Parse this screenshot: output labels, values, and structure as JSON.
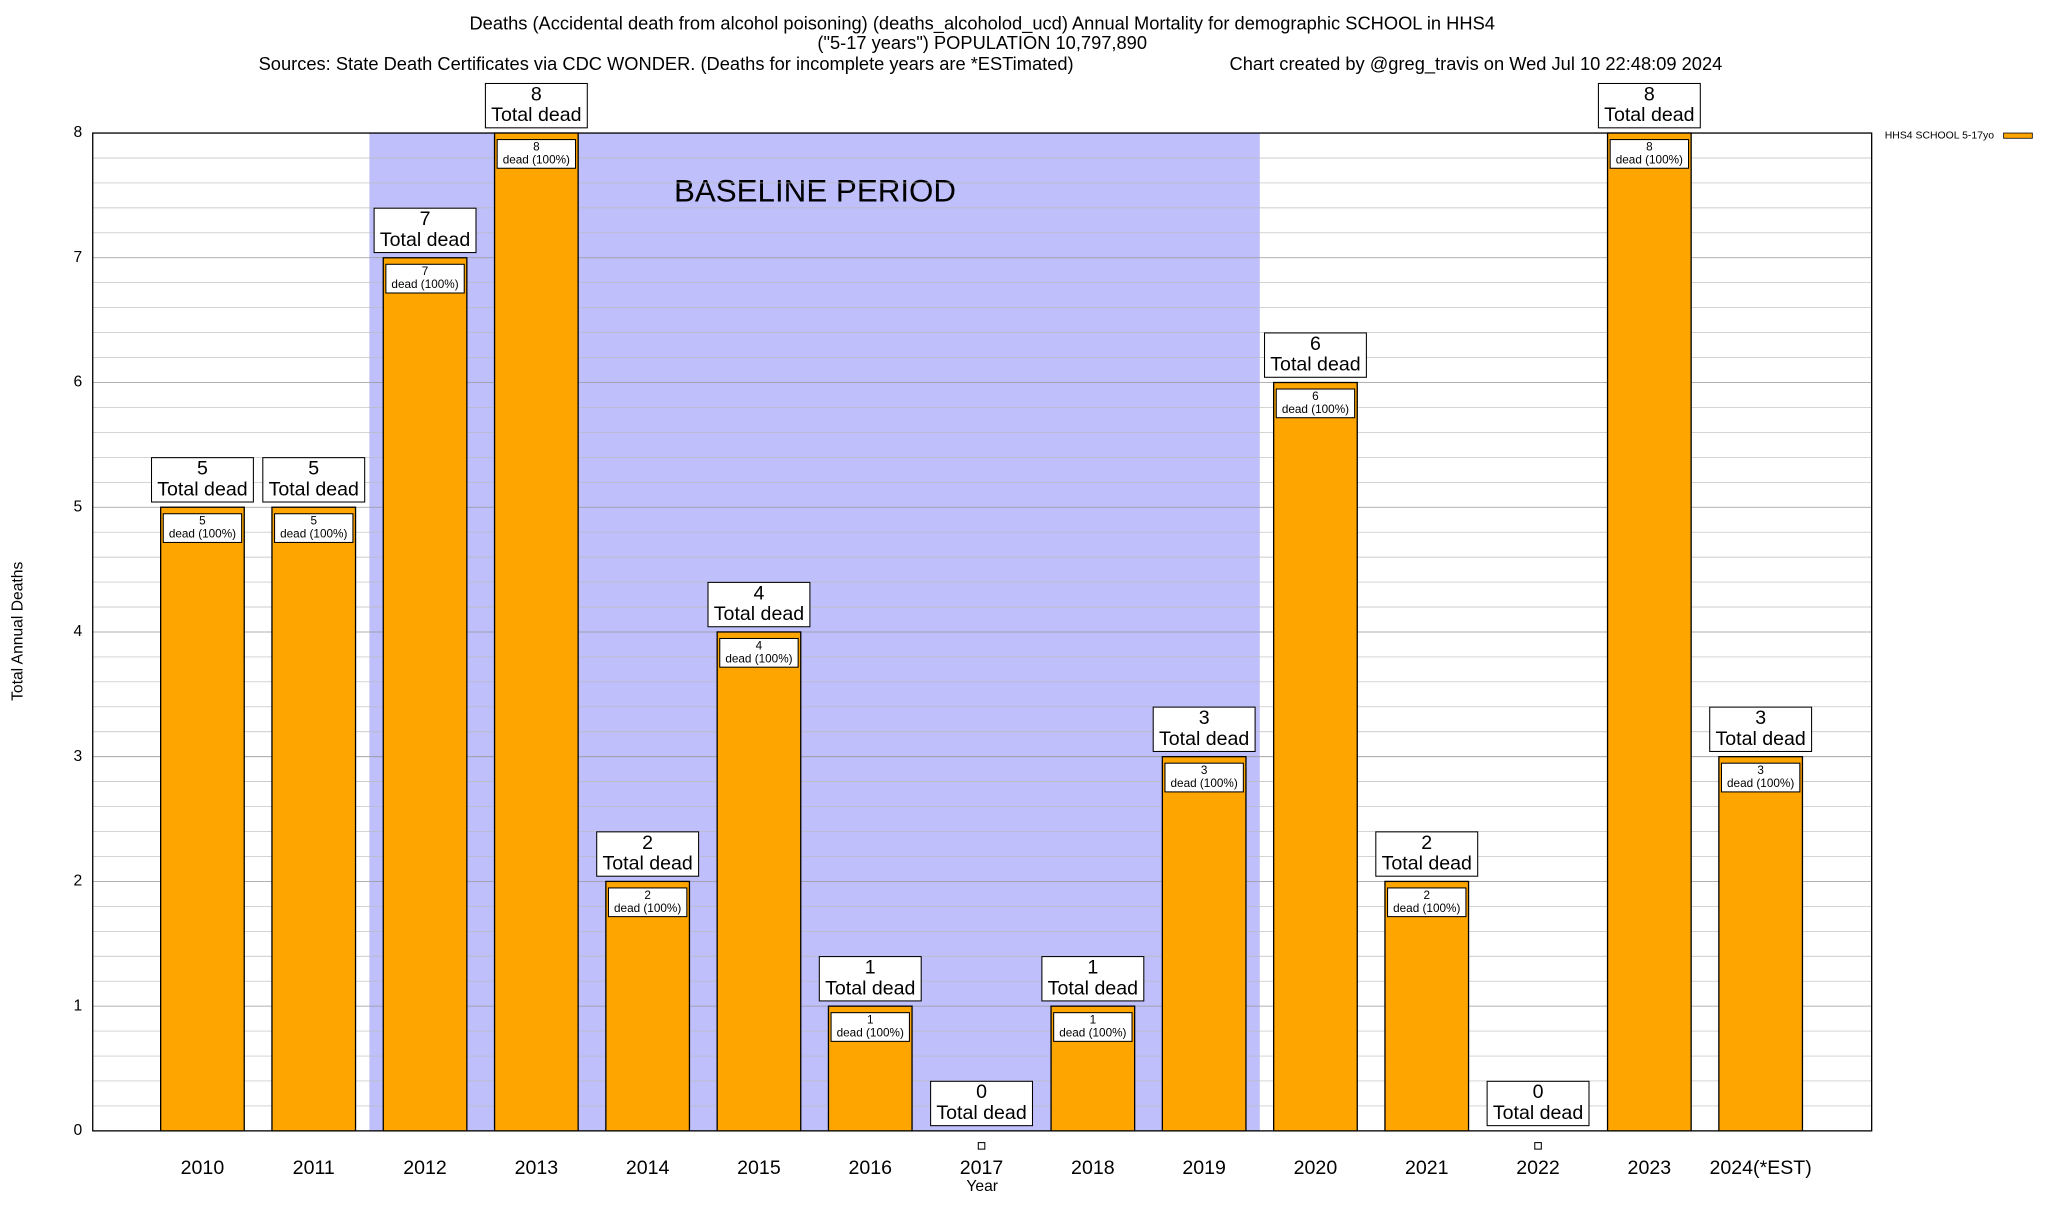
{
  "chart_data": {
    "type": "bar",
    "title": "Deaths (Accidental death from alcohol poisoning) (deaths_alcoholod_ucd) Annual Mortality for demographic SCHOOL in HHS4",
    "subtitle": "(\"5-17 years\") POPULATION 10,797,890",
    "sources": "Sources: State Death Certificates via CDC WONDER. (Deaths for incomplete years are *ESTimated)",
    "credit": "Chart created by @greg_travis on Wed Jul 10 22:48:09 2024",
    "x_label": "Year",
    "y_label": "Total Annual Deaths",
    "categories": [
      "2010",
      "2011",
      "2012",
      "2013",
      "2014",
      "2015",
      "2016",
      "2017",
      "2018",
      "2019",
      "2020",
      "2021",
      "2022",
      "2023",
      "2024(*EST)"
    ],
    "series": [
      {
        "name": "HHS4 SCHOOL 5-17yo",
        "color": "#ffa500",
        "values": [
          5,
          5,
          7,
          8,
          2,
          4,
          1,
          0,
          1,
          3,
          6,
          2,
          0,
          8,
          3
        ]
      }
    ],
    "total_label": "Total dead",
    "segment_label": "dead (100%)",
    "baseline": {
      "label": "BASELINE PERIOD",
      "categories": [
        "2012",
        "2019"
      ],
      "color": "#bfbffb"
    },
    "ylim": [
      0,
      8
    ],
    "yticks": [
      0,
      1,
      2,
      3,
      4,
      5,
      6,
      7,
      8
    ],
    "grid": true
  }
}
